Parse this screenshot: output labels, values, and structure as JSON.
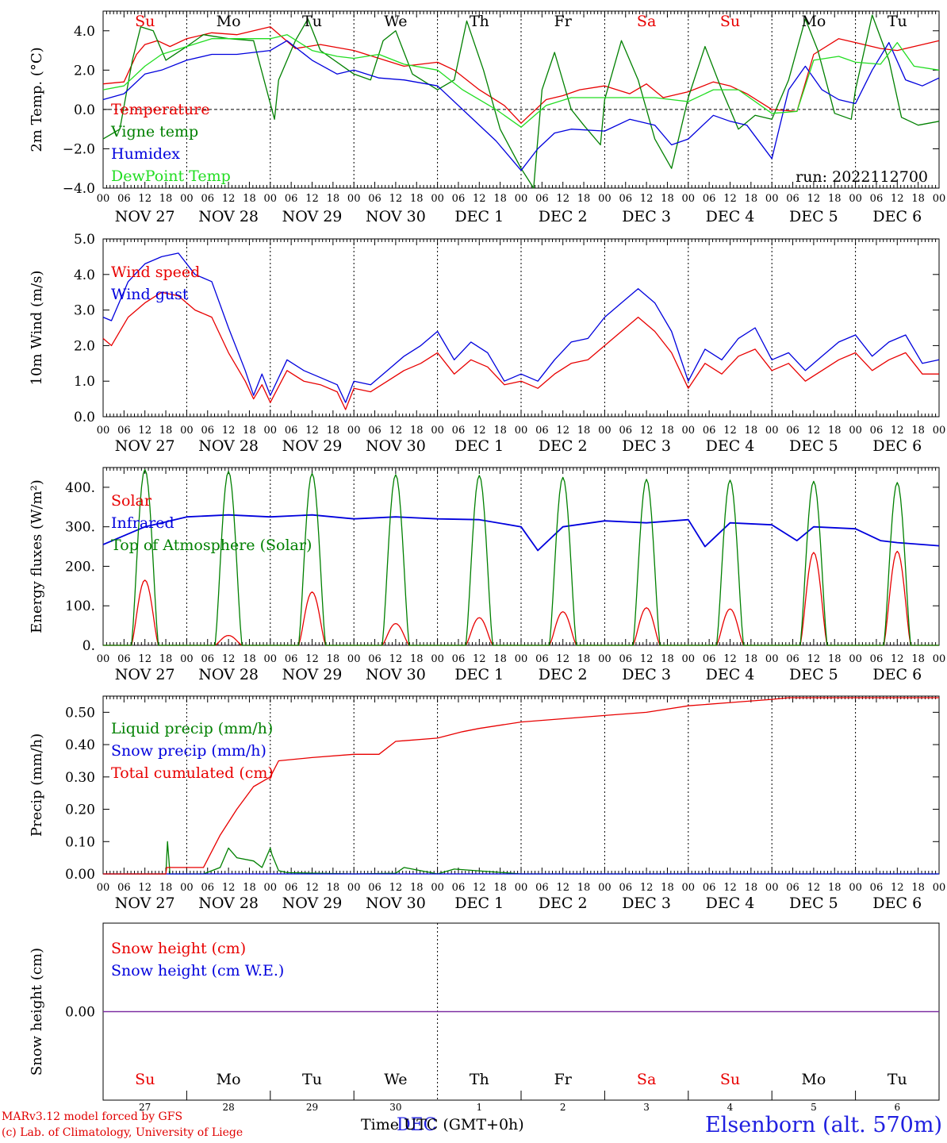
{
  "colors": {
    "red": "#e80000",
    "green": "#008000",
    "blue": "#0000dd",
    "lightgreen": "#22dd22",
    "purple": "#7a2aa0"
  },
  "days": [
    {
      "abbr": "Su",
      "date": "NOV 27",
      "num": "27",
      "weekend": true
    },
    {
      "abbr": "Mo",
      "date": "NOV 28",
      "num": "28",
      "weekend": false
    },
    {
      "abbr": "Tu",
      "date": "NOV 29",
      "num": "29",
      "weekend": false
    },
    {
      "abbr": "We",
      "date": "NOV 30",
      "num": "30",
      "weekend": false
    },
    {
      "abbr": "Th",
      "date": "DEC  1",
      "num": "1",
      "weekend": false
    },
    {
      "abbr": "Fr",
      "date": "DEC  2",
      "num": "2",
      "weekend": false
    },
    {
      "abbr": "Sa",
      "date": "DEC  3",
      "num": "3",
      "weekend": true
    },
    {
      "abbr": "Su",
      "date": "DEC  4",
      "num": "4",
      "weekend": true
    },
    {
      "abbr": "Mo",
      "date": "DEC  5",
      "num": "5",
      "weekend": false
    },
    {
      "abbr": "Tu",
      "date": "DEC  6",
      "num": "6",
      "weekend": false
    }
  ],
  "hour_labels": [
    "00",
    "06",
    "12",
    "18"
  ],
  "footer": {
    "credit_line1": "MARv3.12 model forced by GFS",
    "credit_line2": "(c) Lab. of Climatology, University of Liege",
    "x_title": "Time UTC (GMT+0h)",
    "station": "Elsenborn (alt. 570m)",
    "center_month": "DEC"
  },
  "chart_data": [
    {
      "type": "line",
      "ylabel": "2m Temp. (°C)",
      "ylim": [
        -4,
        5
      ],
      "yticks": [
        -4,
        -2,
        0,
        2,
        4
      ],
      "ytick_labels": [
        "−4.0",
        "−2.0",
        "0.0",
        "2.0",
        "4.0"
      ],
      "x_unit": "days since NOV 27 00 UTC",
      "xlim": [
        0,
        10
      ],
      "zero_line": true,
      "annotation": "run: 2022112700",
      "series": [
        {
          "name": "Temperature",
          "color": "red",
          "x": [
            0,
            0.25,
            0.4,
            0.5,
            0.65,
            0.8,
            1,
            1.3,
            1.6,
            2,
            2.3,
            2.6,
            3,
            3.3,
            3.6,
            4,
            4.2,
            4.5,
            4.8,
            5,
            5.3,
            5.5,
            5.7,
            6,
            6.3,
            6.5,
            6.7,
            7,
            7.3,
            7.5,
            7.7,
            8,
            8.3,
            8.5,
            8.8,
            9,
            9.3,
            9.5,
            9.7,
            10
          ],
          "y": [
            1.3,
            1.4,
            2.8,
            3.3,
            3.5,
            3.2,
            3.6,
            3.9,
            3.8,
            4.2,
            3.1,
            3.3,
            3.0,
            2.6,
            2.2,
            2.4,
            2.0,
            1.0,
            0.2,
            -0.7,
            0.5,
            0.7,
            1.0,
            1.2,
            0.8,
            1.3,
            0.6,
            0.9,
            1.4,
            1.2,
            0.8,
            0.0,
            -0.1,
            2.8,
            3.6,
            3.4,
            3.1,
            3.0,
            3.2,
            3.5
          ]
        },
        {
          "name": "Vigne temp",
          "color": "green",
          "x": [
            0,
            0.2,
            0.35,
            0.45,
            0.6,
            0.75,
            1,
            1.2,
            1.5,
            1.8,
            2.05,
            2.1,
            2.3,
            2.45,
            2.6,
            3,
            3.2,
            3.35,
            3.5,
            3.7,
            4,
            4.2,
            4.35,
            4.55,
            4.75,
            5,
            5.15,
            5.25,
            5.4,
            5.6,
            5.75,
            5.95,
            6,
            6.2,
            6.4,
            6.6,
            6.8,
            7,
            7.2,
            7.4,
            7.6,
            7.8,
            8,
            8.2,
            8.4,
            8.55,
            8.75,
            8.95,
            9,
            9.2,
            9.4,
            9.55,
            9.75,
            10
          ],
          "y": [
            -1.5,
            -1.0,
            2.5,
            4.2,
            4.0,
            2.5,
            3.2,
            3.8,
            3.6,
            3.5,
            -0.5,
            1.5,
            3.5,
            4.6,
            3.0,
            1.8,
            1.5,
            3.5,
            4.0,
            1.8,
            1.0,
            1.5,
            4.5,
            2.0,
            -1.0,
            -3.0,
            -4.0,
            1.0,
            2.9,
            0.0,
            -0.8,
            -1.8,
            0.5,
            3.5,
            1.5,
            -1.5,
            -3.0,
            0.6,
            3.2,
            1.0,
            -1.0,
            -0.3,
            -0.5,
            1.5,
            4.6,
            3.0,
            -0.2,
            -0.5,
            1.0,
            4.8,
            2.5,
            -0.4,
            -0.8,
            -0.6
          ]
        },
        {
          "name": "Humidex",
          "color": "blue",
          "x": [
            0,
            0.25,
            0.5,
            0.7,
            1,
            1.3,
            1.6,
            2,
            2.2,
            2.5,
            2.8,
            3,
            3.3,
            3.6,
            4,
            4.3,
            4.7,
            5,
            5.2,
            5.4,
            5.6,
            6,
            6.3,
            6.6,
            6.8,
            7,
            7.3,
            7.5,
            7.7,
            8,
            8.2,
            8.4,
            8.6,
            8.8,
            9,
            9.2,
            9.4,
            9.6,
            9.8,
            10
          ],
          "y": [
            0.5,
            0.8,
            1.8,
            2.0,
            2.5,
            2.8,
            2.8,
            3.0,
            3.5,
            2.5,
            1.8,
            2.0,
            1.6,
            1.5,
            1.2,
            0.0,
            -1.6,
            -3.1,
            -2.0,
            -1.2,
            -1.0,
            -1.1,
            -0.5,
            -0.8,
            -1.8,
            -1.5,
            -0.3,
            -0.6,
            -0.8,
            -2.5,
            1.0,
            2.2,
            1.0,
            0.5,
            0.3,
            2.0,
            3.4,
            1.5,
            1.2,
            1.6
          ]
        },
        {
          "name": "DewPoint Temp",
          "color": "lightgreen",
          "x": [
            0,
            0.25,
            0.5,
            0.7,
            1,
            1.3,
            1.6,
            2,
            2.2,
            2.5,
            2.8,
            3,
            3.3,
            3.6,
            4,
            4.3,
            4.7,
            5,
            5.3,
            5.6,
            6,
            6.3,
            6.6,
            7,
            7.3,
            7.6,
            8,
            8.3,
            8.5,
            8.8,
            9,
            9.3,
            9.5,
            9.7,
            10
          ],
          "y": [
            1.0,
            1.2,
            2.2,
            2.8,
            3.2,
            3.6,
            3.6,
            3.6,
            3.8,
            3.0,
            2.7,
            2.6,
            2.8,
            2.3,
            2.0,
            1.0,
            0.0,
            -0.9,
            0.2,
            0.6,
            0.6,
            0.6,
            0.6,
            0.4,
            1.0,
            1.0,
            -0.2,
            -0.1,
            2.5,
            2.7,
            2.4,
            2.3,
            3.4,
            2.2,
            2.0
          ]
        }
      ]
    },
    {
      "type": "line",
      "ylabel": "10m Wind (m/s)",
      "ylim": [
        0,
        5
      ],
      "yticks": [
        0,
        1,
        2,
        3,
        4,
        5
      ],
      "ytick_labels": [
        "0.0",
        "1.0",
        "2.0",
        "3.0",
        "4.0",
        "5.0"
      ],
      "x_unit": "days since NOV 27 00 UTC",
      "xlim": [
        0,
        10
      ],
      "series": [
        {
          "name": "Wind speed",
          "color": "red",
          "x": [
            0,
            0.1,
            0.3,
            0.5,
            0.7,
            0.9,
            1.1,
            1.3,
            1.5,
            1.7,
            1.8,
            1.9,
            2,
            2.2,
            2.4,
            2.6,
            2.8,
            2.9,
            3,
            3.2,
            3.4,
            3.6,
            3.8,
            4,
            4.2,
            4.4,
            4.6,
            4.8,
            5,
            5.2,
            5.4,
            5.6,
            5.8,
            6,
            6.2,
            6.4,
            6.6,
            6.8,
            7,
            7.2,
            7.4,
            7.6,
            7.8,
            8,
            8.2,
            8.4,
            8.6,
            8.8,
            9,
            9.2,
            9.4,
            9.6,
            9.8,
            10
          ],
          "y": [
            2.2,
            2.0,
            2.8,
            3.2,
            3.5,
            3.4,
            3.0,
            2.8,
            1.8,
            1.0,
            0.5,
            0.9,
            0.4,
            1.3,
            1.0,
            0.9,
            0.7,
            0.2,
            0.8,
            0.7,
            1.0,
            1.3,
            1.5,
            1.8,
            1.2,
            1.6,
            1.4,
            0.9,
            1.0,
            0.8,
            1.2,
            1.5,
            1.6,
            2.0,
            2.4,
            2.8,
            2.4,
            1.8,
            0.8,
            1.5,
            1.2,
            1.7,
            1.9,
            1.3,
            1.5,
            1.0,
            1.3,
            1.6,
            1.8,
            1.3,
            1.6,
            1.8,
            1.2,
            1.2
          ]
        },
        {
          "name": "Wind gust",
          "color": "blue",
          "x": [
            0,
            0.1,
            0.3,
            0.5,
            0.7,
            0.9,
            1.1,
            1.3,
            1.5,
            1.7,
            1.8,
            1.9,
            2,
            2.2,
            2.4,
            2.6,
            2.8,
            2.9,
            3,
            3.2,
            3.4,
            3.6,
            3.8,
            4,
            4.2,
            4.4,
            4.6,
            4.8,
            5,
            5.2,
            5.4,
            5.6,
            5.8,
            6,
            6.2,
            6.4,
            6.6,
            6.8,
            7,
            7.2,
            7.4,
            7.6,
            7.8,
            8,
            8.2,
            8.4,
            8.6,
            8.8,
            9,
            9.2,
            9.4,
            9.6,
            9.8,
            10
          ],
          "y": [
            2.8,
            2.7,
            3.8,
            4.3,
            4.5,
            4.6,
            4.0,
            3.8,
            2.5,
            1.3,
            0.6,
            1.2,
            0.6,
            1.6,
            1.3,
            1.1,
            0.9,
            0.4,
            1.0,
            0.9,
            1.3,
            1.7,
            2.0,
            2.4,
            1.6,
            2.1,
            1.8,
            1.0,
            1.2,
            1.0,
            1.6,
            2.1,
            2.2,
            2.8,
            3.2,
            3.6,
            3.2,
            2.4,
            1.0,
            1.9,
            1.6,
            2.2,
            2.5,
            1.6,
            1.8,
            1.3,
            1.7,
            2.1,
            2.3,
            1.7,
            2.1,
            2.3,
            1.5,
            1.6
          ]
        }
      ]
    },
    {
      "type": "line",
      "ylabel": "Energy fluxes (W/m²)",
      "ylim": [
        0,
        450
      ],
      "yticks": [
        0,
        100,
        200,
        300,
        400
      ],
      "ytick_labels": [
        "0.",
        "100.",
        "200.",
        "300.",
        "400."
      ],
      "x_unit": "days since NOV 27 00 UTC",
      "xlim": [
        0,
        10
      ],
      "series": [
        {
          "name": "Solar",
          "color": "red",
          "daily_peak_day_fraction": 0.5,
          "daily_peaks": [
            165,
            25,
            135,
            55,
            70,
            85,
            95,
            92,
            235,
            238
          ]
        },
        {
          "name": "Infrared",
          "color": "blue",
          "x": [
            0,
            0.5,
            1,
            1.5,
            2,
            2.5,
            3,
            3.5,
            4,
            4.5,
            5,
            5.2,
            5.5,
            6,
            6.5,
            7,
            7.2,
            7.5,
            8,
            8.3,
            8.5,
            9,
            9.3,
            9.5,
            10
          ],
          "y": [
            255,
            300,
            325,
            330,
            325,
            330,
            320,
            325,
            320,
            318,
            300,
            240,
            300,
            315,
            310,
            318,
            250,
            310,
            305,
            265,
            300,
            295,
            265,
            260,
            252
          ]
        },
        {
          "name": "Top of Atmosphere (Solar)",
          "color": "green",
          "daily_peak_day_fraction": 0.5,
          "daily_peaks": [
            445,
            440,
            435,
            432,
            430,
            425,
            420,
            418,
            415,
            412
          ]
        }
      ]
    },
    {
      "type": "line",
      "ylabel": "Precip (mm/h)",
      "ylim": [
        0,
        0.55
      ],
      "yticks": [
        0,
        0.1,
        0.2,
        0.3,
        0.4,
        0.5
      ],
      "ytick_labels": [
        "0.00",
        "0.10",
        "0.20",
        "0.30",
        "0.40",
        "0.50"
      ],
      "x_unit": "days since NOV 27 00 UTC",
      "xlim": [
        0,
        10
      ],
      "series": [
        {
          "name": "Liquid precip (mm/h)",
          "color": "green",
          "x": [
            0,
            0.75,
            0.77,
            0.8,
            1.2,
            1.4,
            1.5,
            1.6,
            1.8,
            1.9,
            2,
            2.02,
            2.1,
            2.2,
            3,
            3.5,
            3.6,
            4,
            4.2,
            5,
            10
          ],
          "y": [
            0,
            0,
            0.1,
            0,
            0,
            0.02,
            0.08,
            0.05,
            0.04,
            0.02,
            0.08,
            0.06,
            0.01,
            0.004,
            0,
            0.002,
            0.02,
            0,
            0.015,
            0,
            0
          ]
        },
        {
          "name": "Snow precip (mm/h)",
          "color": "blue",
          "x": [
            0,
            10
          ],
          "y": [
            0,
            0
          ]
        },
        {
          "name": "Total cumulated (cm)",
          "color": "red",
          "x": [
            0,
            0.75,
            0.76,
            1.2,
            1.4,
            1.6,
            1.8,
            2,
            2.1,
            2.5,
            3,
            3.3,
            3.5,
            4,
            4.3,
            4.5,
            5,
            5.5,
            6,
            6.5,
            7,
            7.5,
            8,
            8.2,
            10
          ],
          "y": [
            0,
            0,
            0.02,
            0.02,
            0.12,
            0.2,
            0.27,
            0.3,
            0.35,
            0.36,
            0.37,
            0.37,
            0.41,
            0.42,
            0.44,
            0.45,
            0.47,
            0.48,
            0.49,
            0.5,
            0.52,
            0.53,
            0.54,
            0.545,
            0.545
          ]
        }
      ]
    },
    {
      "type": "line",
      "ylabel": "Snow height (cm)",
      "ylim": [
        -1,
        1
      ],
      "yticks": [
        0
      ],
      "ytick_labels": [
        "0.00"
      ],
      "x_unit": "days since NOV 27 00 UTC",
      "xlim": [
        0,
        10
      ],
      "series": [
        {
          "name": "Snow height (cm)",
          "color": "red",
          "x": [
            0,
            10
          ],
          "y": [
            0,
            0
          ]
        },
        {
          "name": "Snow height (cm W.E.)",
          "color": "blue",
          "x": [
            0,
            10
          ],
          "y": [
            0,
            0
          ]
        }
      ]
    }
  ]
}
